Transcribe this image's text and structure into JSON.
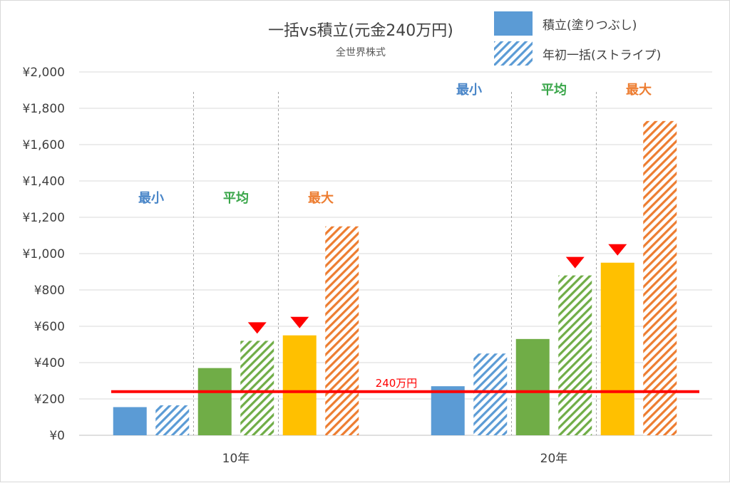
{
  "chart_data": {
    "type": "bar",
    "title": "一括vs積立(元金240万円)",
    "subtitle": "全世界株式",
    "categories": [
      "10年",
      "20年"
    ],
    "ylim": [
      0,
      2000
    ],
    "yticks": [
      0,
      200,
      400,
      600,
      800,
      1000,
      1200,
      1400,
      1600,
      1800,
      2000
    ],
    "ytick_labels": [
      "¥0",
      "¥200",
      "¥400",
      "¥600",
      "¥800",
      "¥1,000",
      "¥1,200",
      "¥1,400",
      "¥1,600",
      "¥1,800",
      "¥2,000"
    ],
    "grid": true,
    "legend": {
      "placement": "top-right",
      "entries": [
        {
          "label": "積立(塗りつぶし)",
          "style": "solid"
        },
        {
          "label": "年初一括(ストライプ)",
          "style": "striped"
        }
      ]
    },
    "group_labels": [
      "最小",
      "平均",
      "最大"
    ],
    "group_colors": [
      "#4a86c8",
      "#3aa64a",
      "#ed7d31"
    ],
    "series": [
      {
        "group": "最小",
        "style": "solid",
        "color": "#5b9bd5",
        "values": [
          155,
          270
        ]
      },
      {
        "group": "最小",
        "style": "striped",
        "color": "#5b9bd5",
        "values": [
          165,
          450
        ]
      },
      {
        "group": "平均",
        "style": "solid",
        "color": "#70ad47",
        "values": [
          370,
          530
        ]
      },
      {
        "group": "平均",
        "style": "striped",
        "color": "#70ad47",
        "values": [
          520,
          880
        ]
      },
      {
        "group": "最大",
        "style": "solid",
        "color": "#ffc000",
        "values": [
          550,
          950
        ]
      },
      {
        "group": "最大",
        "style": "striped",
        "color": "#ed7d31",
        "values": [
          1150,
          1730
        ]
      }
    ],
    "markers": [
      {
        "series_index": 3,
        "category_index": 0
      },
      {
        "series_index": 4,
        "category_index": 0
      },
      {
        "series_index": 3,
        "category_index": 1
      },
      {
        "series_index": 4,
        "category_index": 1
      }
    ],
    "reference_line": {
      "value": 240,
      "label": "240万円",
      "color": "#ff0000"
    }
  }
}
